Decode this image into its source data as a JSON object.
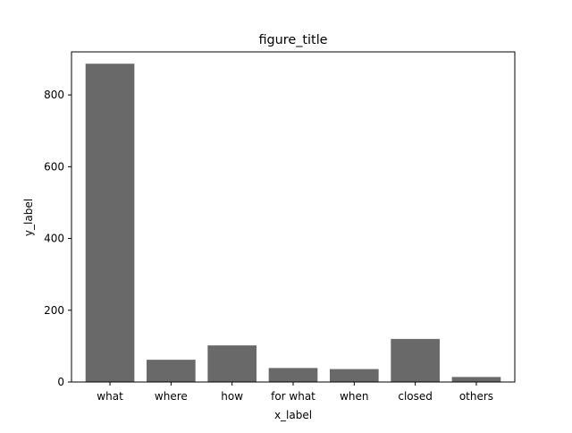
{
  "chart_data": {
    "type": "bar",
    "title": "figure_title",
    "xlabel": "x_label",
    "ylabel": "y_label",
    "categories": [
      "what",
      "where",
      "how",
      "for what",
      "when",
      "closed",
      "others"
    ],
    "values": [
      887,
      62,
      102,
      39,
      36,
      120,
      14
    ],
    "ylim": [
      0,
      920
    ],
    "yticks": [
      0,
      200,
      400,
      600,
      800
    ],
    "grid": false,
    "legend": "none",
    "bar_color": "#696969"
  }
}
